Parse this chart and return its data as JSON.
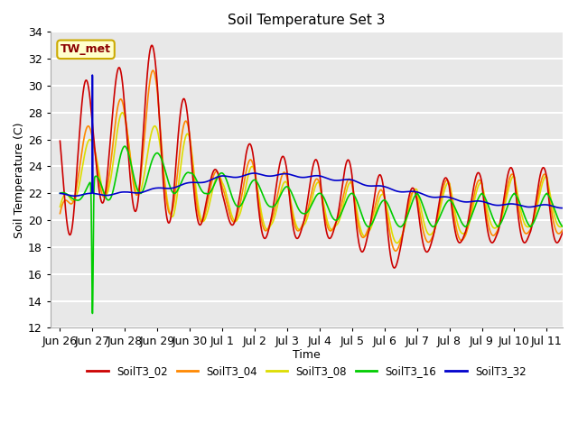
{
  "title": "Soil Temperature Set 3",
  "xlabel": "Time",
  "ylabel": "Soil Temperature (C)",
  "ylim": [
    12,
    34
  ],
  "background_color": "#e8e8e8",
  "grid_color": "white",
  "annotation_text": "TW_met",
  "annotation_color": "#8b0000",
  "annotation_bg": "#ffffcc",
  "annotation_border": "#ccaa00",
  "series_colors": {
    "SoilT3_02": "#cc0000",
    "SoilT3_04": "#ff8800",
    "SoilT3_08": "#dddd00",
    "SoilT3_16": "#00cc00",
    "SoilT3_32": "#0000cc"
  },
  "tick_labels": [
    "Jun 26",
    "Jun 27",
    "Jun 28",
    "Jun 29",
    "Jun 30",
    "Jul 1",
    "Jul 2",
    "Jul 3",
    "Jul 4",
    "Jul 5",
    "Jul 6",
    "Jul 7",
    "Jul 8",
    "Jul 9",
    "Jul 10",
    "Jul 11"
  ],
  "linewidth": 1.2
}
